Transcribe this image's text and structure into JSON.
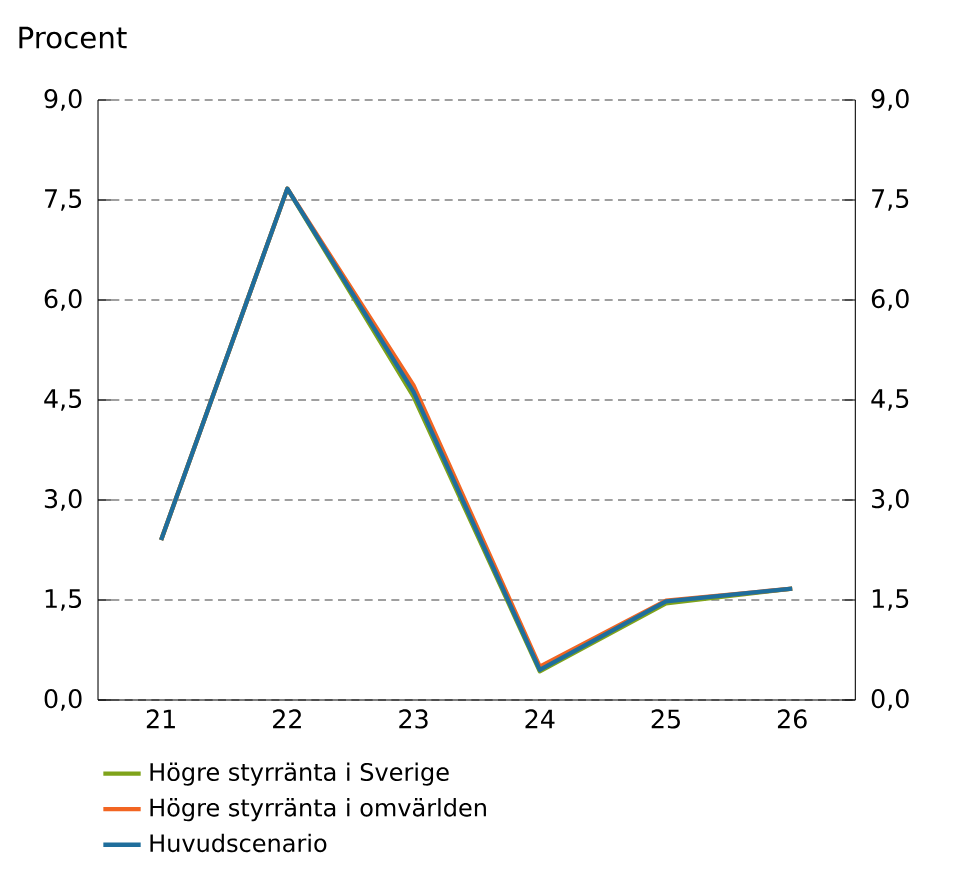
{
  "chart_data": {
    "type": "line",
    "ylabel": "Procent",
    "categories": [
      "21",
      "22",
      "23",
      "24",
      "25",
      "26"
    ],
    "series": [
      {
        "name": "Högre styrränta i Sverige",
        "color": "#7fa31a",
        "values": [
          2.4,
          7.67,
          4.55,
          0.43,
          1.45,
          1.67
        ]
      },
      {
        "name": "Högre styrränta i omvärlden",
        "color": "#f26522",
        "values": [
          2.4,
          7.67,
          4.72,
          0.5,
          1.49,
          1.67
        ]
      },
      {
        "name": "Huvudscenario",
        "color": "#1f6e9c",
        "values": [
          2.4,
          7.67,
          4.62,
          0.45,
          1.48,
          1.67
        ]
      }
    ],
    "ylim": [
      0,
      9
    ],
    "yticks": [
      {
        "value": 0,
        "label": "0,0"
      },
      {
        "value": 1.5,
        "label": "1,5"
      },
      {
        "value": 3,
        "label": "3,0"
      },
      {
        "value": 4.5,
        "label": "4,5"
      },
      {
        "value": 6,
        "label": "6,0"
      },
      {
        "value": 7.5,
        "label": "7,5"
      },
      {
        "value": 9,
        "label": "9,0"
      }
    ],
    "y2lim": [
      0,
      9
    ],
    "y2ticks": [
      {
        "value": 0,
        "label": "0,0"
      },
      {
        "value": 1.5,
        "label": "1,5"
      },
      {
        "value": 3,
        "label": "3,0"
      },
      {
        "value": 4.5,
        "label": "4,5"
      },
      {
        "value": 6,
        "label": "6,0"
      },
      {
        "value": 7.5,
        "label": "7,5"
      },
      {
        "value": 9,
        "label": "9,0"
      }
    ],
    "grid": "y",
    "legend": "bottom"
  }
}
